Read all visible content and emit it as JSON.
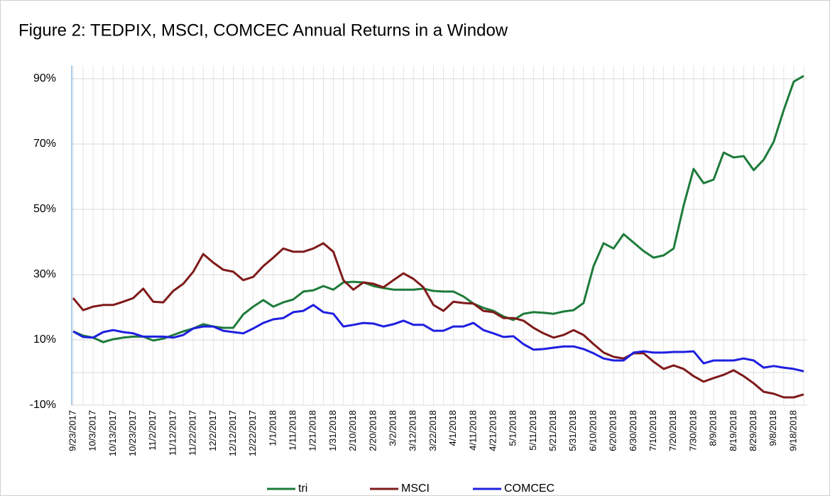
{
  "chart_data": {
    "type": "line",
    "title": "Figure 2: TEDPIX, MSCI, COMCEC Annual Returns in a Window",
    "categories": [
      "9/23/2017",
      null,
      "10/3/2017",
      null,
      "10/13/2017",
      null,
      "10/23/2017",
      null,
      "11/2/2017",
      null,
      "11/12/2017",
      null,
      "11/22/2017",
      null,
      "12/2/2017",
      null,
      "12/12/2017",
      null,
      "12/22/2017",
      null,
      "1/1/2018",
      null,
      "1/11/2018",
      null,
      "1/21/2018",
      null,
      "1/31/2018",
      null,
      "2/10/2018",
      null,
      "2/20/2018",
      null,
      "3/2/2018",
      null,
      "3/12/2018",
      null,
      "3/22/2018",
      null,
      "4/1/2018",
      null,
      "4/11/2018",
      null,
      "4/21/2018",
      null,
      "5/1/2018",
      null,
      "5/11/2018",
      null,
      "5/21/2018",
      null,
      "5/31/2018",
      null,
      "6/10/2018",
      null,
      "6/20/2018",
      null,
      "6/30/2018",
      null,
      "7/10/2018",
      null,
      "7/20/2018",
      null,
      "7/30/2018",
      null,
      "8/9/2018",
      null,
      "8/19/2018",
      null,
      "8/29/2018",
      null,
      "9/8/2018",
      null,
      "9/18/2018",
      null
    ],
    "series": [
      {
        "name": "tri",
        "color": "#1e7b3a",
        "values": [
          12.6,
          11.3,
          10.7,
          9.3,
          10.2,
          10.7,
          11,
          11,
          9.8,
          10.4,
          11.5,
          12.6,
          13.5,
          14.8,
          14.1,
          13.7,
          13.7,
          17.8,
          20.2,
          22.2,
          20.2,
          21.5,
          22.4,
          24.8,
          25.2,
          26.5,
          25.4,
          27.6,
          27.8,
          27.6,
          26.5,
          25.9,
          25.4,
          25.4,
          25.4,
          25.7,
          25,
          24.8,
          24.8,
          23.3,
          21.1,
          19.8,
          18.9,
          17.2,
          16.1,
          18,
          18.5,
          18.3,
          18,
          18.7,
          19.1,
          21.3,
          32.6,
          39.6,
          38,
          42.4,
          39.8,
          37.2,
          35.2,
          35.9,
          38,
          51.1,
          62.4,
          58,
          59.1,
          67.4,
          65.9,
          66.3,
          62,
          65.2,
          70.7,
          80.4,
          89.1,
          90.9
        ]
      },
      {
        "name": "MSCI",
        "color": "#7f1a1a",
        "values": [
          22.8,
          19.1,
          20.2,
          20.7,
          20.7,
          21.7,
          22.8,
          25.7,
          21.7,
          21.5,
          25,
          27.2,
          30.9,
          36.3,
          33.7,
          31.5,
          30.9,
          28.3,
          29.3,
          32.6,
          35.2,
          38,
          37,
          37,
          38,
          39.6,
          37,
          28.3,
          25.4,
          27.6,
          27.2,
          26.1,
          28.3,
          30.4,
          28.7,
          26.1,
          20.7,
          18.9,
          21.7,
          21.3,
          21.1,
          18.9,
          18.5,
          16.7,
          16.7,
          15.9,
          13.7,
          12,
          10.7,
          11.5,
          13,
          11.5,
          8.7,
          6.1,
          4.8,
          4.3,
          5.9,
          5.9,
          3.3,
          1.1,
          2.2,
          1.1,
          -1.1,
          -2.8,
          -1.7,
          -0.7,
          0.7,
          -1.1,
          -3.3,
          -5.9,
          -6.5,
          -7.6,
          -7.6,
          -6.7
        ]
      },
      {
        "name": "COMCEC",
        "color": "#1f1fe0",
        "values": [
          12.6,
          10.9,
          10.7,
          12.4,
          13,
          12.4,
          12,
          11,
          11,
          11,
          10.7,
          11.5,
          13.5,
          14.1,
          14.1,
          12.8,
          12.4,
          12,
          13.5,
          15.2,
          16.3,
          16.7,
          18.5,
          18.9,
          20.7,
          18.5,
          18,
          14.1,
          14.6,
          15.2,
          15,
          14.1,
          14.8,
          15.9,
          14.6,
          14.6,
          12.8,
          12.8,
          14.1,
          14.1,
          15.2,
          13,
          12,
          10.9,
          11.1,
          8.7,
          7,
          7.2,
          7.6,
          8,
          8,
          7.2,
          5.9,
          4.3,
          3.7,
          3.7,
          6.1,
          6.5,
          6.1,
          6.1,
          6.3,
          6.3,
          6.5,
          2.8,
          3.7,
          3.7,
          3.7,
          4.3,
          3.7,
          1.5,
          2,
          1.5,
          1.1,
          0.4
        ]
      }
    ],
    "ylim": [
      -10,
      94
    ],
    "yticks": [
      {
        "value": -10,
        "label": "-10%"
      },
      {
        "value": 10,
        "label": "10%"
      },
      {
        "value": 30,
        "label": "30%"
      },
      {
        "value": 50,
        "label": "50%"
      },
      {
        "value": 70,
        "label": "70%"
      },
      {
        "value": 90,
        "label": "90%"
      }
    ],
    "grid": true,
    "legend": "bottom"
  }
}
